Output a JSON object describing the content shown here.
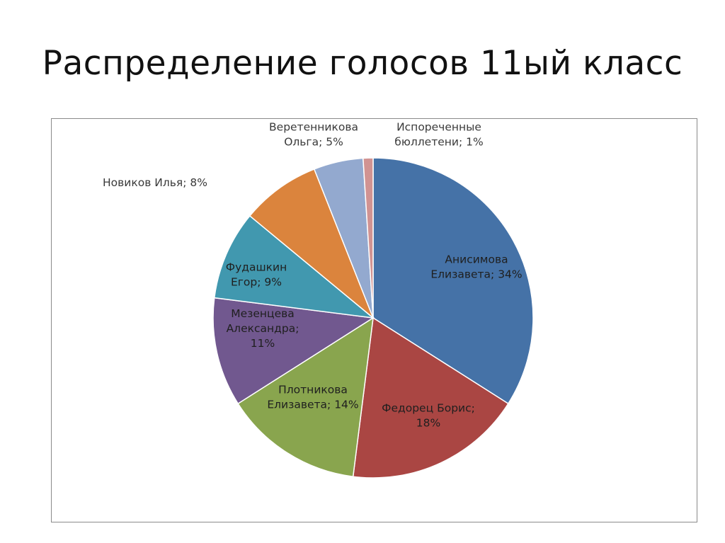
{
  "title": "Распределение голосов 11ый класс",
  "chart_data": {
    "type": "pie",
    "title": "",
    "start_angle_deg": 0,
    "direction": "clockwise",
    "slices": [
      {
        "name": "Анисимова Елизавета",
        "value": 34,
        "color": "#4572A7",
        "label_lines": [
          "Анисимова",
          "Елизавета; 34%"
        ]
      },
      {
        "name": "Федорец Борис",
        "value": 18,
        "color": "#AA4643",
        "label_lines": [
          "Федорец Борис;",
          "18%"
        ]
      },
      {
        "name": "Плотникова Елизавета",
        "value": 14,
        "color": "#89A54E",
        "label_lines": [
          "Плотникова",
          "Елизавета; 14%"
        ]
      },
      {
        "name": "Мезенцева Александра",
        "value": 11,
        "color": "#71588F",
        "label_lines": [
          "Мезенцева",
          "Александра;",
          "11%"
        ]
      },
      {
        "name": "Фудашкин Егор",
        "value": 9,
        "color": "#4198AF",
        "label_lines": [
          "Фудашкин",
          "Егор; 9%"
        ]
      },
      {
        "name": "Новиков Илья",
        "value": 8,
        "color": "#DB843D",
        "label_lines": [
          "Новиков Илья; 8%"
        ]
      },
      {
        "name": "Веретенникова Ольга",
        "value": 5,
        "color": "#93A9CF",
        "label_lines": [
          "Веретенникова",
          "Ольга; 5%"
        ]
      },
      {
        "name": "Испорченные бюллетени",
        "value": 1,
        "color": "#D19392",
        "label_lines": [
          "Испореченные",
          "бюллетени; 1%"
        ]
      }
    ]
  }
}
